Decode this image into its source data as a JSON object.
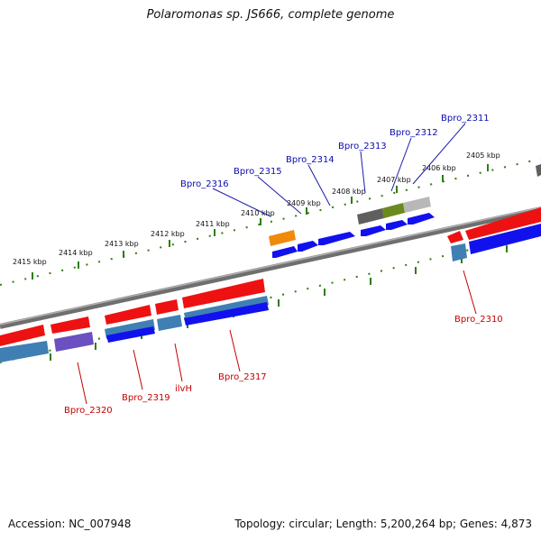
{
  "title": "Polaromonas sp. JS666, complete genome",
  "footer": {
    "accession": "Accession: NC_007948",
    "summary": "Topology: circular; Length: 5,200,264 bp; Genes: 4,873"
  },
  "colors": {
    "backbone": "#7a7a7a",
    "tick": "#2e7d0f",
    "forward_gene": "#ee1111",
    "reverse_gene": "#1111ee",
    "label_forward": "#0b0bb0",
    "label_reverse": "#c40000"
  },
  "kbp_labels": [
    "2415 kbp",
    "2414 kbp",
    "2413 kbp",
    "2412 kbp",
    "2411 kbp",
    "2410 kbp",
    "2409 kbp",
    "2408 kbp",
    "2407 kbp",
    "2406 kbp",
    "2405 kbp"
  ],
  "gene_labels_top": [
    "Bpro_2316",
    "Bpro_2315",
    "Bpro_2314",
    "Bpro_2313",
    "Bpro_2312",
    "Bpro_2311"
  ],
  "gene_labels_bottom": [
    "Bpro_2320",
    "Bpro_2319",
    "ilvH",
    "Bpro_2317",
    "Bpro_2310"
  ]
}
